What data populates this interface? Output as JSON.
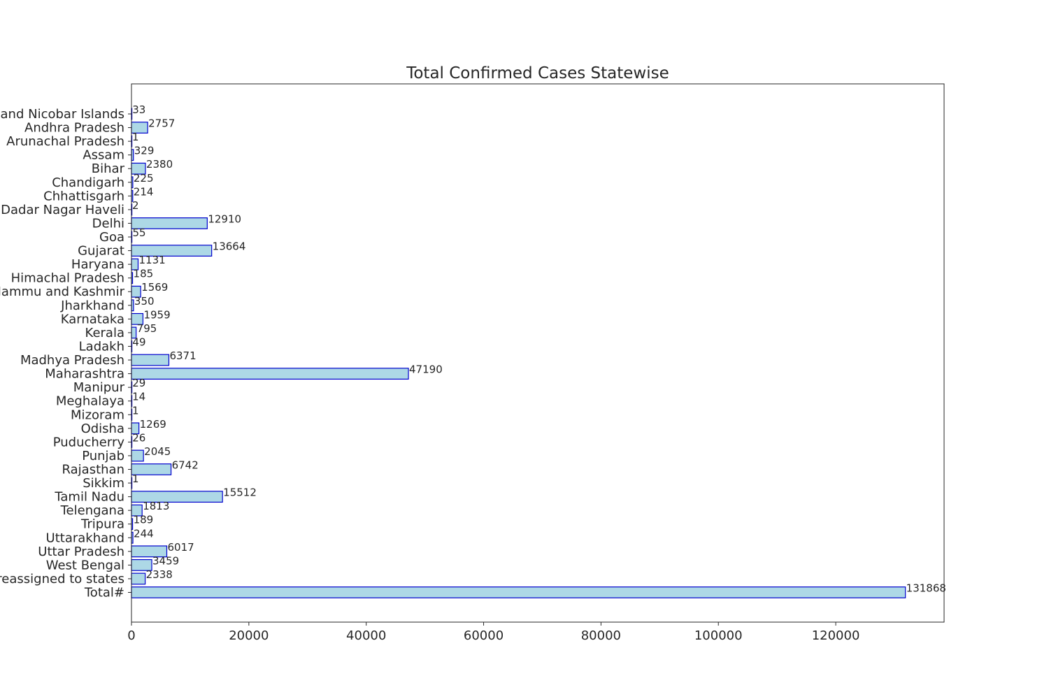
{
  "chart_data": {
    "type": "bar",
    "orientation": "horizontal",
    "title": "Total Confirmed Cases Statewise",
    "xlabel": "",
    "ylabel": "",
    "xlim": [
      0,
      138461
    ],
    "x_ticks": [
      0,
      20000,
      40000,
      60000,
      80000,
      100000,
      120000
    ],
    "grid": false,
    "bar_fill": "#add8e6",
    "bar_edge": "#0000cd",
    "categories": [
      "Andaman and Nicobar Islands",
      "Andhra Pradesh",
      "Arunachal Pradesh",
      "Assam",
      "Bihar",
      "Chandigarh",
      "Chhattisgarh",
      "Dadar Nagar Haveli",
      "Delhi",
      "Goa",
      "Gujarat",
      "Haryana",
      "Himachal Pradesh",
      "Jammu and Kashmir",
      "Jharkhand",
      "Karnataka",
      "Kerala",
      "Ladakh",
      "Madhya Pradesh",
      "Maharashtra",
      "Manipur",
      "Meghalaya",
      "Mizoram",
      "Odisha",
      "Puducherry",
      "Punjab",
      "Rajasthan",
      "Sikkim",
      "Tamil Nadu",
      "Telengana",
      "Tripura",
      "Uttarakhand",
      "Uttar Pradesh",
      "West Bengal",
      "Cases being reassigned to states",
      "Total#"
    ],
    "values": [
      33,
      2757,
      1,
      329,
      2380,
      225,
      214,
      2,
      12910,
      55,
      13664,
      1131,
      185,
      1569,
      350,
      1959,
      795,
      49,
      6371,
      47190,
      29,
      14,
      1,
      1269,
      26,
      2045,
      6742,
      1,
      15512,
      1813,
      189,
      244,
      6017,
      3459,
      2338,
      131868
    ]
  }
}
